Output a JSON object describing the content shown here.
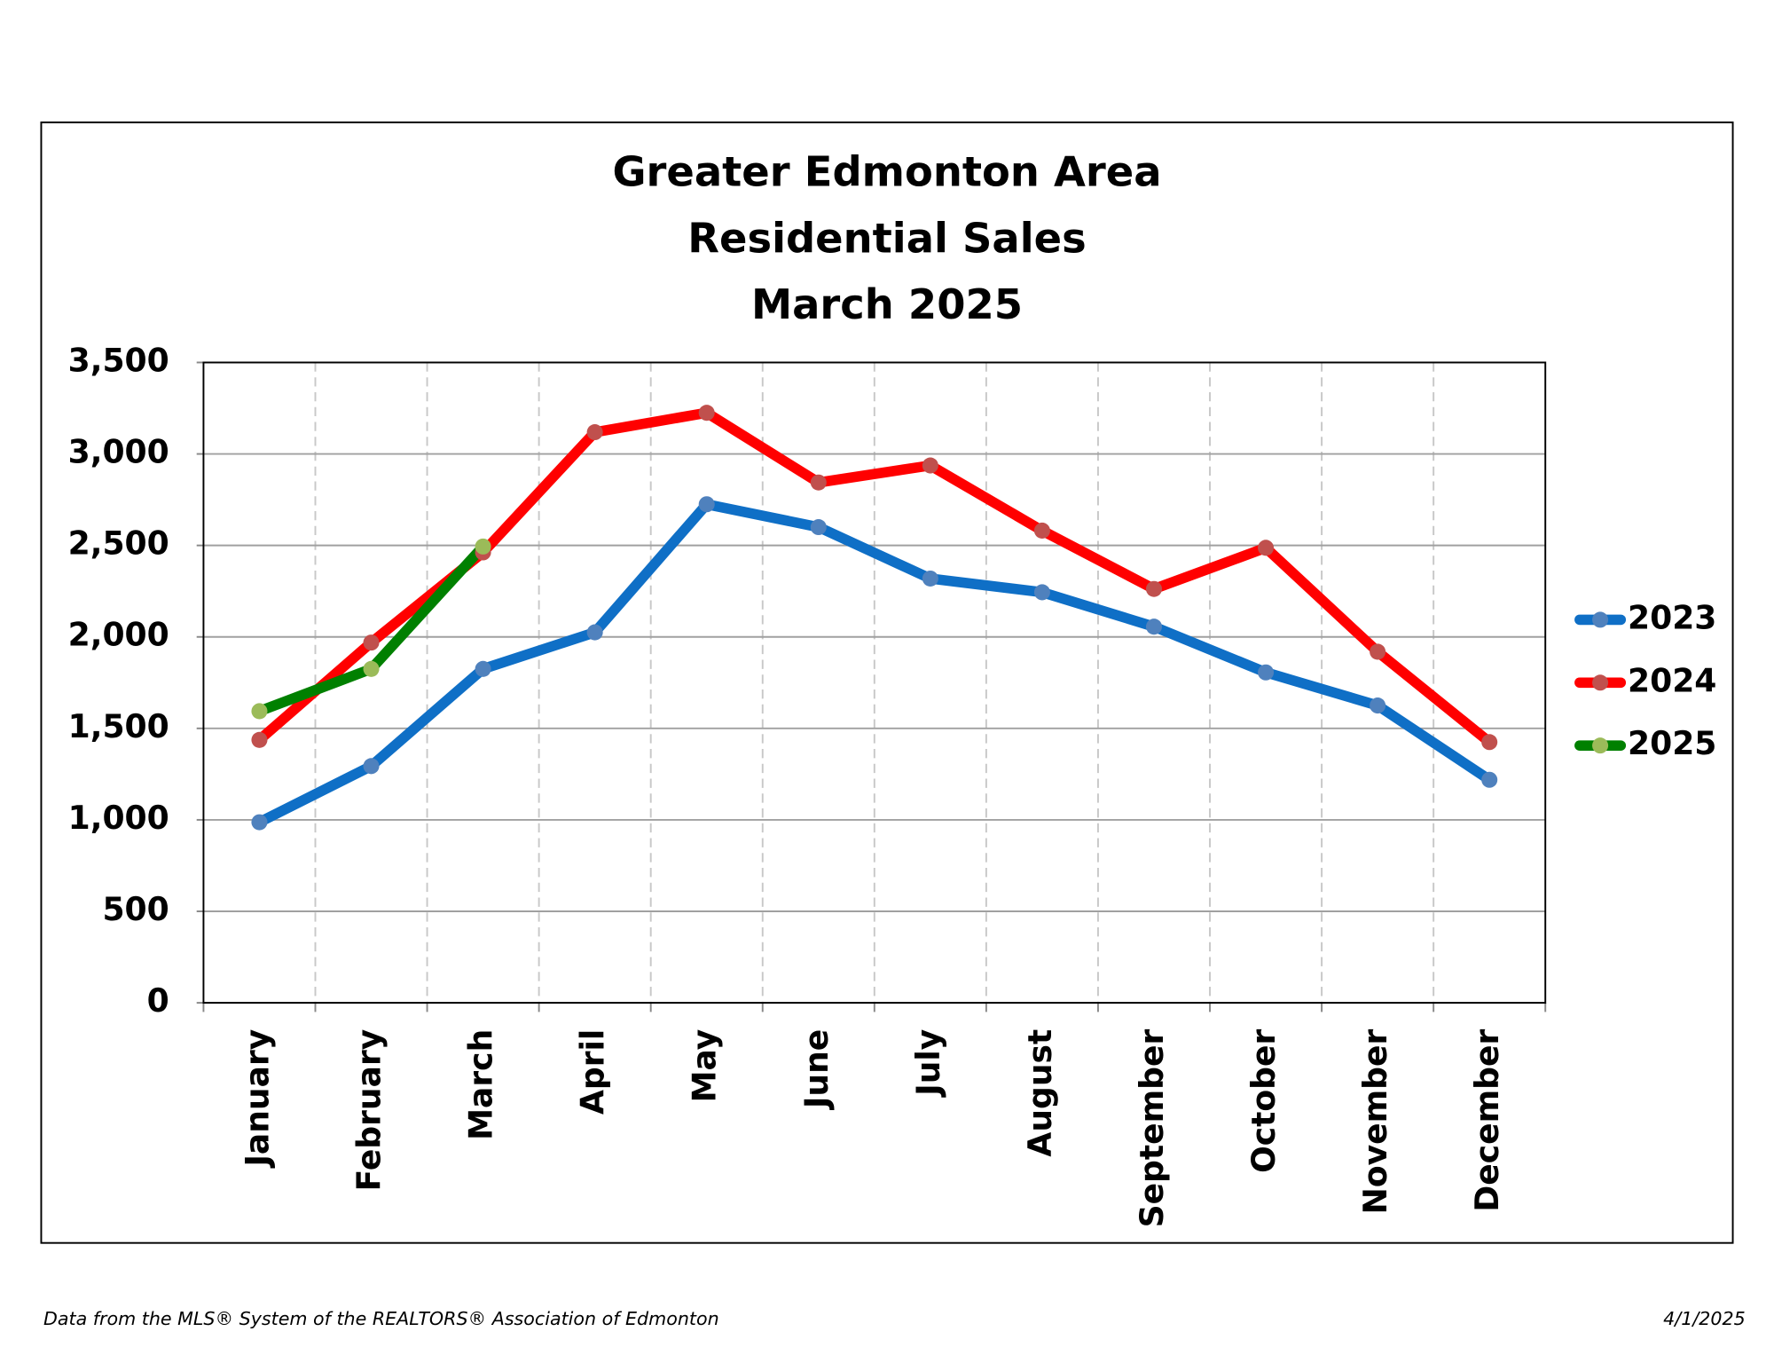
{
  "chart_data": {
    "type": "line",
    "title": [
      "Greater Edmonton Area",
      "Residential Sales",
      "March 2025"
    ],
    "categories": [
      "January",
      "February",
      "March",
      "April",
      "May",
      "June",
      "July",
      "August",
      "September",
      "October",
      "November",
      "December"
    ],
    "series": [
      {
        "name": "2023",
        "color": "#0f6fc6",
        "marker_color": "#4f81bd",
        "values": [
          987,
          1294,
          1825,
          2025,
          2725,
          2600,
          2319,
          2244,
          2056,
          1806,
          1625,
          1219
        ]
      },
      {
        "name": "2024",
        "color": "#ff0000",
        "marker_color": "#c0504d",
        "values": [
          1437,
          1969,
          2462,
          3119,
          3225,
          2844,
          2937,
          2581,
          2262,
          2487,
          1919,
          1425
        ]
      },
      {
        "name": "2025",
        "color": "#008000",
        "marker_color": "#9bbb59",
        "values": [
          1594,
          1825,
          2494,
          null,
          null,
          null,
          null,
          null,
          null,
          null,
          null,
          null
        ]
      }
    ],
    "ylim": [
      0,
      3500
    ],
    "yticks": [
      0,
      500,
      {
        "value": 1000,
        "label": "1,000"
      },
      {
        "value": 1500,
        "label": "1,500"
      },
      {
        "value": 2000,
        "label": "2,000"
      },
      {
        "value": 2500,
        "label": "2,500"
      },
      {
        "value": 3000,
        "label": "3,000"
      },
      {
        "value": 3500,
        "label": "3,500"
      }
    ],
    "grid": true,
    "legend": "right"
  },
  "footer": {
    "source": "Data from the MLS® System of the REALTORS® Association of Edmonton",
    "date": "4/1/2025"
  }
}
